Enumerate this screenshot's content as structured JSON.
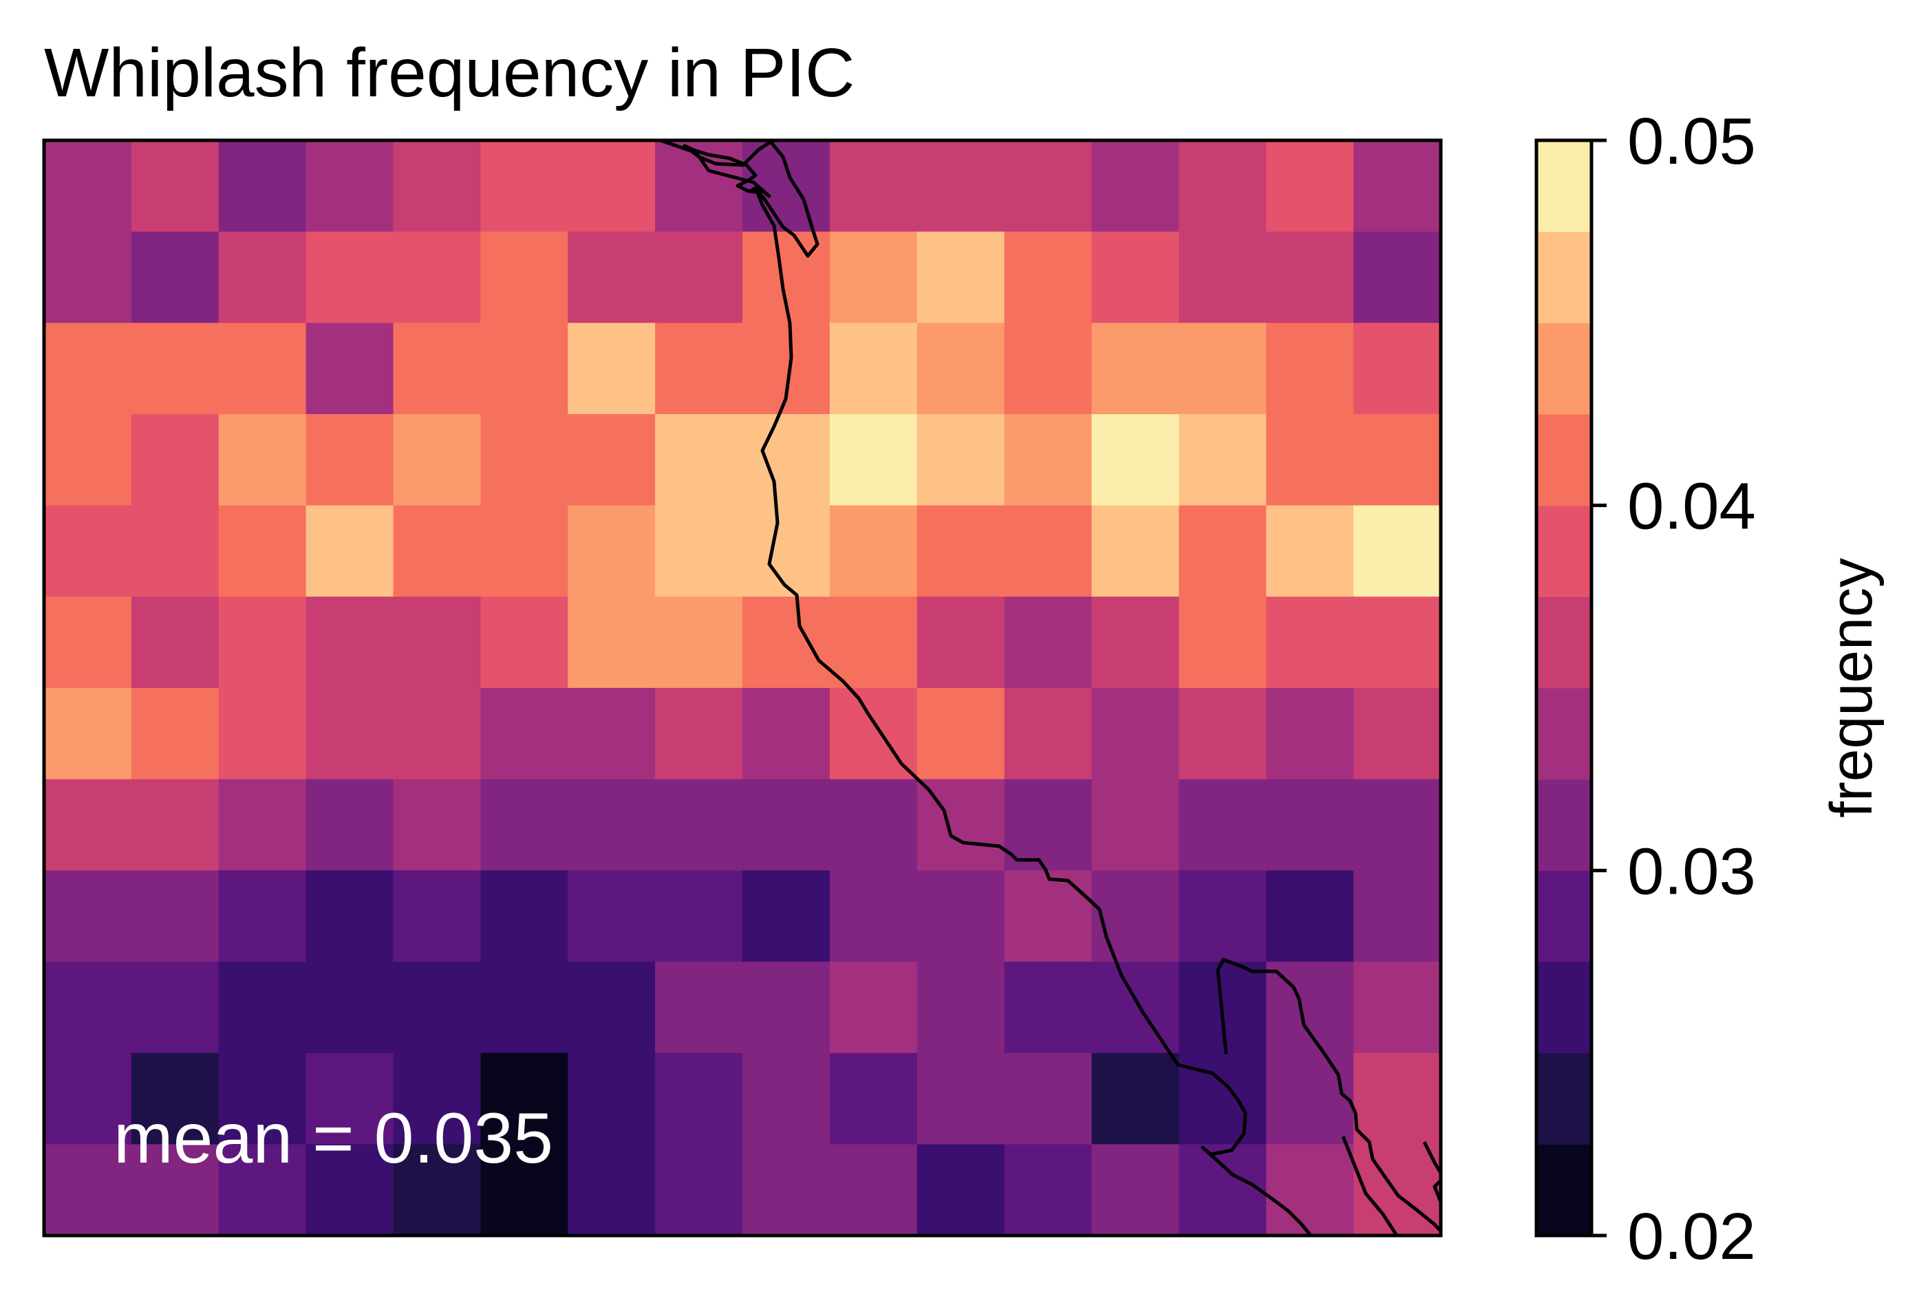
{
  "chart_data": {
    "type": "heatmap",
    "title": "Whiplash frequency in PIC",
    "annotation": "mean = 0.035",
    "colorbar": {
      "label": "frequency",
      "vmin": 0.02,
      "vmax": 0.05,
      "ticks": [
        "0.02",
        "0.03",
        "0.04",
        "0.05"
      ],
      "levels": [
        0.02,
        0.0225,
        0.025,
        0.0275,
        0.03,
        0.0325,
        0.035,
        0.0375,
        0.04,
        0.0425,
        0.045,
        0.0475,
        0.05
      ],
      "colors": [
        "#07061c",
        "#1d1147",
        "#3b0f70",
        "#5e177f",
        "#812581",
        "#a3307e",
        "#c83e73",
        "#e5526b",
        "#f6705e",
        "#fb9a6a",
        "#fec287",
        "#fbeeac"
      ]
    },
    "grid": {
      "rows": 12,
      "cols": 16,
      "values": [
        [
          0.033,
          0.035,
          0.031,
          0.034,
          0.037,
          0.038,
          0.039,
          0.034,
          0.031,
          0.036,
          0.037,
          0.036,
          0.033,
          0.036,
          0.039,
          0.034
        ],
        [
          0.033,
          0.03,
          0.036,
          0.039,
          0.038,
          0.041,
          0.036,
          0.037,
          0.04,
          0.043,
          0.046,
          0.041,
          0.039,
          0.037,
          0.035,
          0.031
        ],
        [
          0.04,
          0.042,
          0.041,
          0.034,
          0.04,
          0.042,
          0.046,
          0.04,
          0.042,
          0.045,
          0.044,
          0.042,
          0.044,
          0.043,
          0.041,
          0.039
        ],
        [
          0.041,
          0.039,
          0.043,
          0.04,
          0.044,
          0.042,
          0.041,
          0.045,
          0.046,
          0.049,
          0.045,
          0.043,
          0.049,
          0.047,
          0.041,
          0.04
        ],
        [
          0.039,
          0.038,
          0.04,
          0.045,
          0.041,
          0.04,
          0.044,
          0.047,
          0.045,
          0.043,
          0.041,
          0.04,
          0.045,
          0.042,
          0.045,
          0.048
        ],
        [
          0.042,
          0.036,
          0.038,
          0.036,
          0.037,
          0.039,
          0.043,
          0.044,
          0.041,
          0.04,
          0.036,
          0.033,
          0.037,
          0.04,
          0.039,
          0.039
        ],
        [
          0.043,
          0.042,
          0.038,
          0.035,
          0.036,
          0.033,
          0.034,
          0.036,
          0.033,
          0.038,
          0.04,
          0.035,
          0.033,
          0.035,
          0.034,
          0.037
        ],
        [
          0.036,
          0.035,
          0.034,
          0.032,
          0.033,
          0.031,
          0.03,
          0.031,
          0.03,
          0.031,
          0.033,
          0.031,
          0.034,
          0.032,
          0.031,
          0.032
        ],
        [
          0.03,
          0.03,
          0.028,
          0.026,
          0.029,
          0.027,
          0.028,
          0.029,
          0.027,
          0.03,
          0.032,
          0.034,
          0.031,
          0.029,
          0.026,
          0.031
        ],
        [
          0.029,
          0.028,
          0.027,
          0.026,
          0.025,
          0.026,
          0.027,
          0.03,
          0.031,
          0.033,
          0.031,
          0.029,
          0.028,
          0.027,
          0.03,
          0.033
        ],
        [
          0.028,
          0.024,
          0.027,
          0.028,
          0.025,
          0.022,
          0.025,
          0.028,
          0.03,
          0.029,
          0.031,
          0.032,
          0.024,
          0.027,
          0.032,
          0.036
        ],
        [
          0.031,
          0.03,
          0.029,
          0.027,
          0.024,
          0.022,
          0.027,
          0.029,
          0.031,
          0.03,
          0.027,
          0.029,
          0.03,
          0.028,
          0.034,
          0.037
        ]
      ]
    },
    "features": [
      "coastline"
    ]
  }
}
